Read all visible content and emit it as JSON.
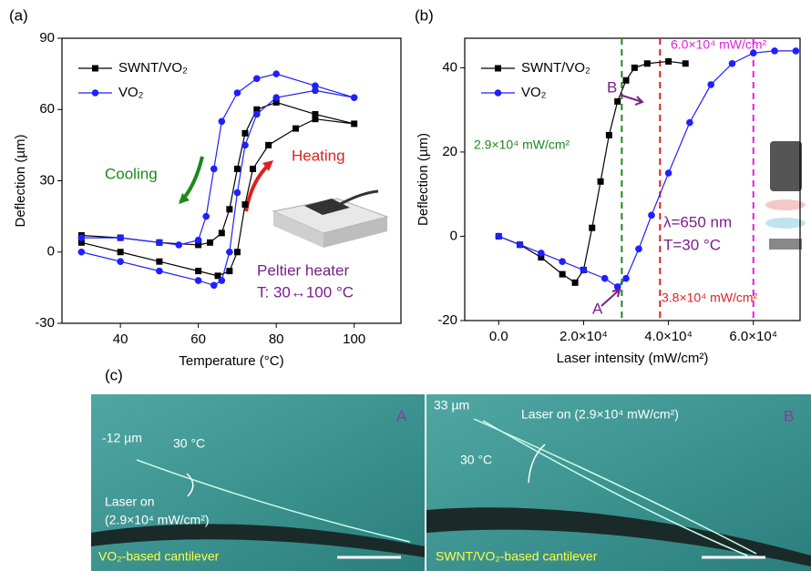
{
  "chart_data": [
    {
      "type": "line",
      "panel": "(a)",
      "xlabel": "Temperature (°C)",
      "ylabel": "Deflection (µm)",
      "xlim": [
        25,
        112
      ],
      "xticks": [
        40,
        60,
        80,
        100
      ],
      "ylim": [
        -30,
        90
      ],
      "yticks": [
        -30,
        0,
        30,
        60,
        90
      ],
      "legend": "upper left",
      "series": [
        {
          "name": "SWNT/VO₂",
          "color": "#000000",
          "marker": "square",
          "x": [
            30,
            40,
            50,
            60,
            65,
            68,
            70,
            72,
            74,
            78,
            85,
            90,
            100,
            90,
            80,
            75,
            72,
            70,
            68,
            66,
            63,
            60,
            50,
            40,
            30
          ],
          "values": [
            4,
            0,
            -4,
            -8,
            -10,
            -8,
            0,
            20,
            35,
            45,
            52,
            56,
            54,
            58,
            63,
            60,
            50,
            35,
            18,
            8,
            4,
            3,
            4,
            6,
            7
          ]
        },
        {
          "name": "VO₂",
          "color": "#1f1fff",
          "marker": "circle",
          "x": [
            30,
            40,
            50,
            60,
            64,
            66,
            68,
            70,
            72,
            75,
            80,
            90,
            100,
            90,
            80,
            75,
            70,
            66,
            64,
            62,
            60,
            55,
            50,
            40,
            30
          ],
          "values": [
            0,
            -4,
            -8,
            -12,
            -14,
            -12,
            0,
            25,
            45,
            58,
            65,
            68,
            65,
            70,
            75,
            73,
            67,
            55,
            35,
            15,
            5,
            3,
            4,
            6,
            6
          ]
        }
      ],
      "annotations": [
        {
          "text": "Cooling",
          "color": "#1a8a1a"
        },
        {
          "text": "Heating",
          "color": "#e02020"
        },
        {
          "text": "Peltier heater",
          "color": "#7a1f8a"
        },
        {
          "text": "T: 30↔100 °C",
          "color": "#7a1f8a"
        }
      ]
    },
    {
      "type": "line",
      "panel": "(b)",
      "xlabel": "Laser intensity (mW/cm²)",
      "ylabel": "Deflection (µm)",
      "xlim": [
        -8000,
        71000
      ],
      "xticks": [
        {
          "value": 0,
          "label": "0.0"
        },
        {
          "value": 20000,
          "label": "2.0×10⁴"
        },
        {
          "value": 40000,
          "label": "4.0×10⁴"
        },
        {
          "value": 60000,
          "label": "6.0×10⁴"
        }
      ],
      "ylim": [
        -20,
        47
      ],
      "yticks": [
        -20,
        0,
        20,
        40
      ],
      "legend": "upper left",
      "series": [
        {
          "name": "SWNT/VO₂",
          "color": "#000000",
          "marker": "square",
          "x": [
            0,
            5000,
            10000,
            15000,
            18000,
            20000,
            22000,
            24000,
            26000,
            28000,
            30000,
            32000,
            35000,
            40000,
            44000
          ],
          "values": [
            0,
            -2,
            -5,
            -9,
            -11,
            -8,
            2,
            13,
            24,
            32,
            37,
            40,
            41,
            41.5,
            41
          ]
        },
        {
          "name": "VO₂",
          "color": "#1f1fff",
          "marker": "circle",
          "x": [
            0,
            5000,
            10000,
            15000,
            20000,
            25000,
            28000,
            30000,
            33000,
            36000,
            40000,
            45000,
            50000,
            55000,
            60000,
            65000,
            70000
          ],
          "values": [
            0,
            -2,
            -4,
            -6,
            -8,
            -10,
            -12,
            -10,
            -3,
            5,
            15,
            27,
            36,
            41,
            43.5,
            44,
            44
          ]
        }
      ],
      "markers": [
        {
          "value": 29000,
          "label": "2.9×10⁴ mW/cm²",
          "color": "#1a8a1a"
        },
        {
          "value": 38000,
          "label": "3.8×10⁴ mW/cm²",
          "color": "#e02020"
        },
        {
          "value": 60000,
          "label": "6.0×10⁴ mW/cm²",
          "color": "#e020e0"
        }
      ],
      "annotations": [
        {
          "text": "B",
          "color": "#7a1f8a"
        },
        {
          "text": "A",
          "color": "#7a1f8a"
        },
        {
          "text": "λ=650 nm",
          "color": "#7a1f8a"
        },
        {
          "text": "T=30 °C",
          "color": "#7a1f8a"
        }
      ]
    }
  ],
  "panel_c": {
    "label": "(c)",
    "left": {
      "tag": "A",
      "offset": "-12 µm",
      "temp": "30 °C",
      "laser": "Laser on",
      "intensity": "(2.9×10⁴ mW/cm²)",
      "caption": "VO₂-based cantilever"
    },
    "right": {
      "tag": "B",
      "offset": "33 µm",
      "laser": "Laser on (2.9×10⁴ mW/cm²)",
      "temp": "30 °C",
      "caption": "SWNT/VO₂-based cantilever"
    }
  }
}
